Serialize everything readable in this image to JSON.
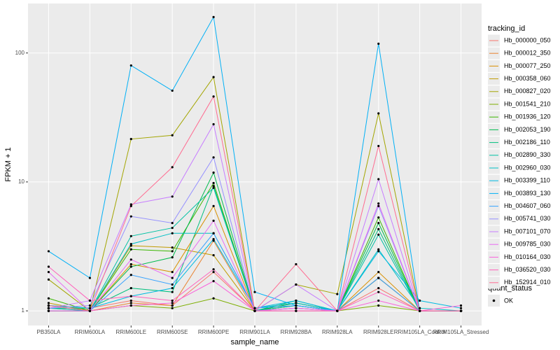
{
  "chart_data": {
    "type": "line",
    "y_label": "FPKM + 1",
    "x_label": "sample_name",
    "legend_title": "tracking_id",
    "shape_legend_title": "quant_status",
    "shape_legend_entries": [
      "OK"
    ],
    "log_scale": true,
    "grid": true,
    "legend_position": "right",
    "categories": [
      "PB350LA",
      "RRIM600LA",
      "RRIM600LE",
      "RRIM600SE",
      "RRIM600PE",
      "RRIM901LA",
      "RRIM928BA",
      "RRIM928LA",
      "RRIM928LE",
      "RRIM105LA_Control",
      "RRIM105LA_Stressed"
    ],
    "ylim": [
      0.77,
      242
    ],
    "yticks": [
      1,
      10,
      100
    ],
    "series": [
      {
        "name": "Hb_000000_050",
        "color": "#F8766D",
        "values": [
          1.1,
          1.05,
          1.2,
          1.1,
          2.0,
          1.0,
          1.05,
          1.0,
          1.5,
          1.0,
          1.0
        ]
      },
      {
        "name": "Hb_000012_350",
        "color": "#EA8331",
        "values": [
          1.05,
          1.0,
          1.15,
          1.1,
          3.5,
          1.0,
          1.1,
          1.0,
          1.8,
          1.0,
          1.0
        ]
      },
      {
        "name": "Hb_000077_250",
        "color": "#D89000",
        "values": [
          1.0,
          1.0,
          2.3,
          2.0,
          6.5,
          1.0,
          1.05,
          1.0,
          2.0,
          1.0,
          1.0
        ]
      },
      {
        "name": "Hb_000358_060",
        "color": "#C09B00",
        "values": [
          1.15,
          1.0,
          3.2,
          3.1,
          2.7,
          1.0,
          1.15,
          1.0,
          1.8,
          1.0,
          1.0
        ]
      },
      {
        "name": "Hb_000827_020",
        "color": "#A3A500",
        "values": [
          1.75,
          1.0,
          21.5,
          23,
          65,
          1.0,
          1.6,
          1.35,
          34,
          1.0,
          1.0
        ]
      },
      {
        "name": "Hb_001541_210",
        "color": "#7CAE00",
        "values": [
          1.0,
          1.0,
          1.1,
          1.05,
          1.25,
          1.0,
          1.0,
          1.0,
          1.1,
          1.0,
          1.0
        ]
      },
      {
        "name": "Hb_001936_120",
        "color": "#39B600",
        "values": [
          1.25,
          1.0,
          3.0,
          2.9,
          9.8,
          1.0,
          1.1,
          1.0,
          5.3,
          1.0,
          1.0
        ]
      },
      {
        "name": "Hb_002053_190",
        "color": "#00BB4E",
        "values": [
          1.1,
          1.0,
          2.2,
          2.6,
          11.8,
          1.0,
          1.15,
          1.0,
          4.8,
          1.0,
          1.0
        ]
      },
      {
        "name": "Hb_002186_110",
        "color": "#00BF7D",
        "values": [
          1.05,
          1.05,
          1.5,
          1.4,
          9.3,
          1.0,
          1.2,
          1.0,
          4.3,
          1.0,
          1.0
        ]
      },
      {
        "name": "Hb_002890_330",
        "color": "#00C1A3",
        "values": [
          1.0,
          1.0,
          3.8,
          4.4,
          9.0,
          1.0,
          1.1,
          1.0,
          3.9,
          1.0,
          1.0
        ]
      },
      {
        "name": "Hb_002960_030",
        "color": "#00BFC4",
        "values": [
          1.05,
          1.0,
          3.3,
          4.0,
          4.0,
          1.05,
          1.15,
          1.0,
          3.0,
          1.05,
          1.0
        ]
      },
      {
        "name": "Hb_003399_110",
        "color": "#00BAE0",
        "values": [
          1.1,
          1.05,
          1.3,
          1.5,
          3.6,
          1.05,
          1.2,
          1.0,
          2.9,
          1.2,
          1.05
        ]
      },
      {
        "name": "Hb_003893_130",
        "color": "#00B0F6",
        "values": [
          2.9,
          1.8,
          80,
          51,
          190,
          1.4,
          1.1,
          1.0,
          118,
          1.0,
          1.0
        ]
      },
      {
        "name": "Hb_004607_060",
        "color": "#35A2FF",
        "values": [
          1.0,
          1.0,
          1.9,
          1.6,
          4.0,
          1.05,
          1.1,
          1.0,
          1.8,
          1.0,
          1.0
        ]
      },
      {
        "name": "Hb_005741_030",
        "color": "#9590FF",
        "values": [
          1.05,
          1.1,
          5.4,
          4.8,
          15.5,
          1.0,
          1.05,
          1.0,
          6.5,
          1.0,
          1.0
        ]
      },
      {
        "name": "Hb_007101_070",
        "color": "#C77CFF",
        "values": [
          1.05,
          1.2,
          6.7,
          7.7,
          28,
          1.0,
          1.6,
          1.0,
          10.5,
          1.0,
          1.0
        ]
      },
      {
        "name": "Hb_009785_030",
        "color": "#E76BF3",
        "values": [
          2.0,
          1.0,
          2.5,
          1.8,
          5.0,
          1.0,
          1.05,
          1.0,
          6.8,
          1.0,
          1.0
        ]
      },
      {
        "name": "Hb_010164_030",
        "color": "#FA62DB",
        "values": [
          1.0,
          1.0,
          1.1,
          1.15,
          1.7,
          1.0,
          1.0,
          1.0,
          1.2,
          1.0,
          1.1
        ]
      },
      {
        "name": "Hb_036520_030",
        "color": "#FF62BC",
        "values": [
          2.2,
          1.2,
          1.3,
          1.2,
          2.1,
          1.0,
          1.0,
          1.0,
          1.4,
          1.0,
          1.0
        ]
      },
      {
        "name": "Hb_152914_010",
        "color": "#FF6C91",
        "values": [
          1.1,
          1.0,
          6.5,
          13,
          46,
          1.0,
          2.3,
          1.0,
          19,
          1.0,
          1.0
        ]
      }
    ]
  }
}
